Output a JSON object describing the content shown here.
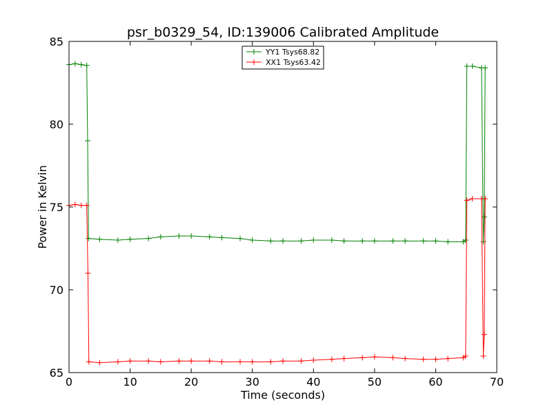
{
  "chart_data": {
    "type": "line",
    "title": "psr_b0329_54, ID:139006 Calibrated Amplitude",
    "xlabel": "Time (seconds)",
    "ylabel": "Power in Kelvin",
    "xlim": [
      0,
      70
    ],
    "ylim": [
      65,
      85
    ],
    "xticks": [
      0,
      10,
      20,
      30,
      40,
      50,
      60,
      70
    ],
    "yticks": [
      65,
      70,
      75,
      80,
      85
    ],
    "grid": false,
    "legend_position": "top-center",
    "marker": "+",
    "series": [
      {
        "name": "YY1 Tsys68.82",
        "color": "#008000",
        "points": [
          [
            0,
            83.6
          ],
          [
            1,
            83.65
          ],
          [
            2,
            83.6
          ],
          [
            2.9,
            83.55
          ],
          [
            3.05,
            79.0
          ],
          [
            3.2,
            73.1
          ],
          [
            5,
            73.05
          ],
          [
            8,
            73.0
          ],
          [
            10,
            73.05
          ],
          [
            13,
            73.1
          ],
          [
            15,
            73.2
          ],
          [
            18,
            73.25
          ],
          [
            20,
            73.25
          ],
          [
            23,
            73.2
          ],
          [
            25,
            73.15
          ],
          [
            28,
            73.1
          ],
          [
            30,
            73.0
          ],
          [
            33,
            72.95
          ],
          [
            35,
            72.95
          ],
          [
            38,
            72.95
          ],
          [
            40,
            73.0
          ],
          [
            43,
            73.0
          ],
          [
            45,
            72.95
          ],
          [
            48,
            72.95
          ],
          [
            50,
            72.95
          ],
          [
            53,
            72.95
          ],
          [
            55,
            72.95
          ],
          [
            58,
            72.95
          ],
          [
            60,
            72.95
          ],
          [
            62,
            72.9
          ],
          [
            64.5,
            72.9
          ],
          [
            64.9,
            73.0
          ],
          [
            65.1,
            83.5
          ],
          [
            66,
            83.5
          ],
          [
            67.5,
            83.4
          ],
          [
            67.8,
            72.9
          ],
          [
            67.95,
            74.4
          ],
          [
            68.1,
            83.4
          ]
        ]
      },
      {
        "name": "XX1 Tsys63.42",
        "color": "#ff0000",
        "points": [
          [
            0,
            75.1
          ],
          [
            1,
            75.15
          ],
          [
            2,
            75.1
          ],
          [
            2.9,
            75.1
          ],
          [
            3.1,
            71.0
          ],
          [
            3.25,
            65.65
          ],
          [
            5,
            65.6
          ],
          [
            8,
            65.65
          ],
          [
            10,
            65.7
          ],
          [
            13,
            65.7
          ],
          [
            15,
            65.65
          ],
          [
            18,
            65.7
          ],
          [
            20,
            65.7
          ],
          [
            23,
            65.7
          ],
          [
            25,
            65.65
          ],
          [
            28,
            65.65
          ],
          [
            30,
            65.65
          ],
          [
            33,
            65.65
          ],
          [
            35,
            65.7
          ],
          [
            38,
            65.7
          ],
          [
            40,
            65.75
          ],
          [
            43,
            65.8
          ],
          [
            45,
            65.85
          ],
          [
            48,
            65.9
          ],
          [
            50,
            65.95
          ],
          [
            53,
            65.9
          ],
          [
            55,
            65.85
          ],
          [
            58,
            65.8
          ],
          [
            60,
            65.8
          ],
          [
            62,
            65.85
          ],
          [
            64.5,
            65.9
          ],
          [
            64.9,
            66.0
          ],
          [
            65.1,
            75.4
          ],
          [
            66,
            75.5
          ],
          [
            67.5,
            75.5
          ],
          [
            67.8,
            66.0
          ],
          [
            67.95,
            67.3
          ],
          [
            68.1,
            75.5
          ]
        ]
      }
    ]
  }
}
